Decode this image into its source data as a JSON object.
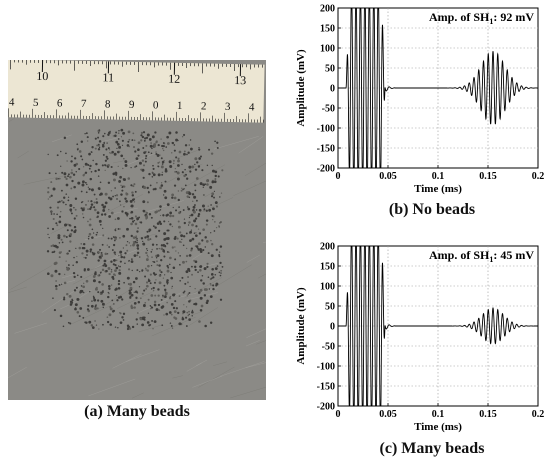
{
  "photo": {
    "caption": "(a) Many beads",
    "ruler_major_labels": [
      "10",
      "11",
      "12",
      "13"
    ],
    "ruler_minor_labels": [
      "4",
      "5",
      "6",
      "7",
      "8",
      "9",
      "0",
      "1",
      "2",
      "3",
      "4"
    ],
    "colors": {
      "ruler": "#ece6d3",
      "plate": "#8b8a86",
      "beads": "#3d3c3a"
    }
  },
  "chart_data": [
    {
      "type": "line",
      "caption": "(b) No beads",
      "annotation": "Amp. of SH",
      "annotation_sub": "1",
      "annotation_value": ": 92 mV",
      "xlabel": "Time (ms)",
      "ylabel": "Amplitude (mV)",
      "xlim": [
        0,
        0.2
      ],
      "ylim": [
        -200,
        200
      ],
      "xticks": [
        "0",
        "0.05",
        "0.1",
        "0.15",
        "0.2"
      ],
      "yticks": [
        "200",
        "150",
        "100",
        "50",
        "0",
        "-50",
        "-100",
        "-150",
        "-200"
      ],
      "grid": true,
      "series": [
        {
          "values_desc": "saturated incident burst",
          "burst": {
            "start": 0.008,
            "end": 0.047,
            "amp": 260,
            "freq_cycles_per_ms": 225
          },
          "echo": {
            "center": 0.155,
            "sigma": 0.012,
            "amp": 92,
            "freq_cycles_per_ms": 210
          }
        }
      ]
    },
    {
      "type": "line",
      "caption": "(c) Many beads",
      "annotation": "Amp. of SH",
      "annotation_sub": "1",
      "annotation_value": ": 45 mV",
      "xlabel": "Time (ms)",
      "ylabel": "Amplitude (mV)",
      "xlim": [
        0,
        0.2
      ],
      "ylim": [
        -200,
        200
      ],
      "xticks": [
        "0",
        "0.05",
        "0.1",
        "0.15",
        "0.2"
      ],
      "yticks": [
        "200",
        "150",
        "100",
        "50",
        "0",
        "-50",
        "-100",
        "-150",
        "-200"
      ],
      "grid": true,
      "series": [
        {
          "values_desc": "saturated incident burst",
          "burst": {
            "start": 0.008,
            "end": 0.047,
            "amp": 260,
            "freq_cycles_per_ms": 225
          },
          "echo": {
            "center": 0.155,
            "sigma": 0.011,
            "amp": 45,
            "freq_cycles_per_ms": 210
          }
        }
      ]
    }
  ]
}
